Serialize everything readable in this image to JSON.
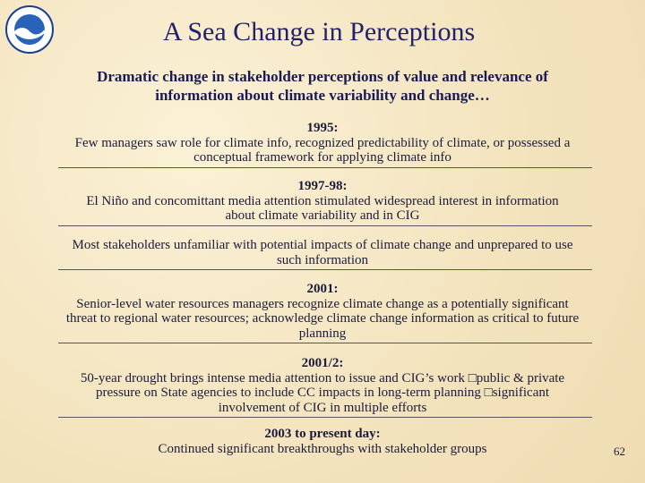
{
  "header": {
    "title": "A Sea Change in Perceptions",
    "subtitle": [
      "Dramatic change in stakeholder perceptions of value and relevance of",
      "information about climate variability and change…"
    ]
  },
  "sections": [
    {
      "heading": "1995:",
      "lines": [
        "Few managers saw role for climate info, recognized predictability of climate, or possessed a",
        "conceptual framework for applying climate info"
      ]
    },
    {
      "heading": "1997-98:",
      "lines": [
        "El Niño and concomittant media attention stimulated widespread interest in information",
        "about climate variability and in CIG"
      ]
    },
    {
      "lines": [
        "Most stakeholders unfamiliar with potential impacts of climate change and unprepared to use",
        "such information"
      ]
    },
    {
      "heading": "2001:",
      "lines": [
        "Senior-level water resources managers recognize climate change as a potentially significant",
        "threat to regional water resources; acknowledge climate change information as critical to future",
        "planning"
      ]
    },
    {
      "heading": "2001/2:",
      "lines": [
        "50-year drought brings intense media attention to issue and CIG’s work □public & private",
        "pressure on State agencies to include CC impacts in long-term planning □significant",
        "involvement of CIG in multiple efforts"
      ]
    },
    {
      "heading": "2003 to present day:",
      "lines": [
        "Continued significant breakthroughs with stakeholder groups"
      ]
    }
  ],
  "page_number": "62"
}
